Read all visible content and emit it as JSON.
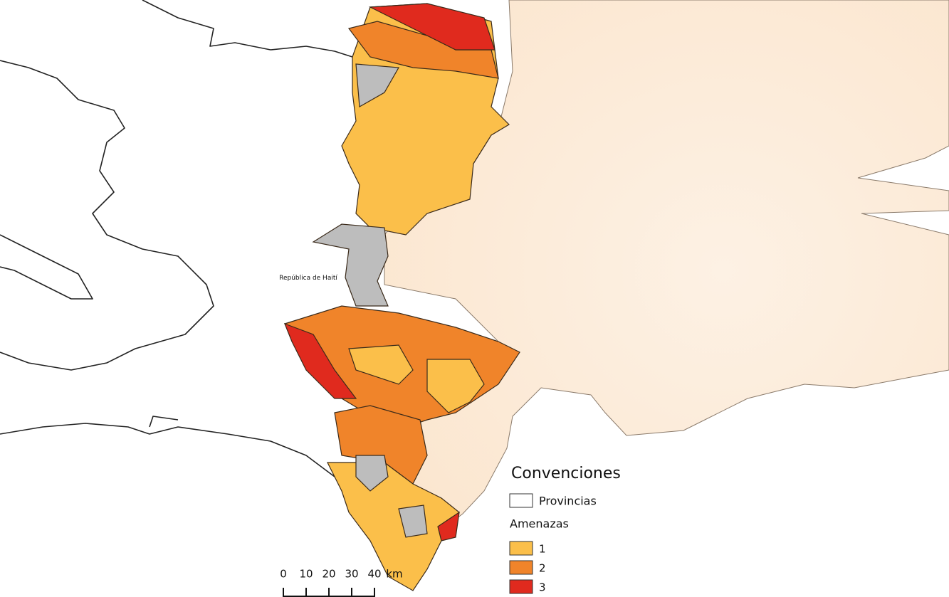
{
  "map": {
    "label": "República de Haití",
    "legend": {
      "title": "Convenciones",
      "boundary": {
        "label": "Provincias",
        "color": "#ffffff"
      },
      "hazard_title": "Amenazas",
      "hazards": [
        {
          "label": "1",
          "color": "#fbbf4a"
        },
        {
          "label": "2",
          "color": "#f0842a"
        },
        {
          "label": "3",
          "color": "#e02a1e"
        }
      ]
    },
    "scale_bar": {
      "labels": [
        "0",
        "10",
        "20",
        "30",
        "40"
      ],
      "unit": "km"
    }
  }
}
